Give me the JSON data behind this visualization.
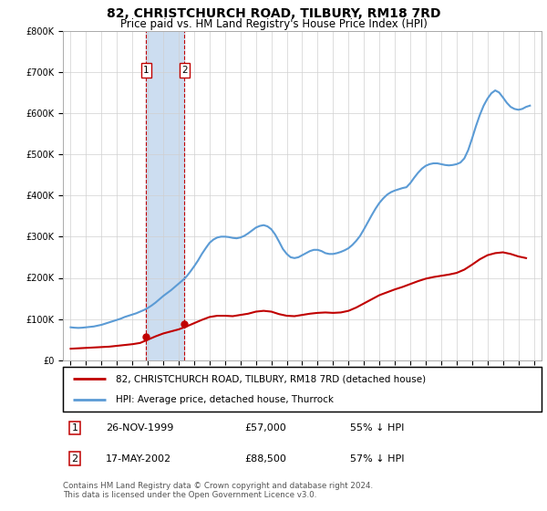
{
  "title": "82, CHRISTCHURCH ROAD, TILBURY, RM18 7RD",
  "subtitle": "Price paid vs. HM Land Registry's House Price Index (HPI)",
  "legend_line1": "82, CHRISTCHURCH ROAD, TILBURY, RM18 7RD (detached house)",
  "legend_line2": "HPI: Average price, detached house, Thurrock",
  "footer": "Contains HM Land Registry data © Crown copyright and database right 2024.\nThis data is licensed under the Open Government Licence v3.0.",
  "table_rows": [
    {
      "num": "1",
      "date": "26-NOV-1999",
      "price": "£57,000",
      "hpi": "55% ↓ HPI"
    },
    {
      "num": "2",
      "date": "17-MAY-2002",
      "price": "£88,500",
      "hpi": "57% ↓ HPI"
    }
  ],
  "sale_points": [
    {
      "year": 1999.9,
      "price": 57000,
      "label": "1"
    },
    {
      "year": 2002.38,
      "price": 88500,
      "label": "2"
    }
  ],
  "hpi_years": [
    1995.0,
    1995.25,
    1995.5,
    1995.75,
    1996.0,
    1996.25,
    1996.5,
    1996.75,
    1997.0,
    1997.25,
    1997.5,
    1997.75,
    1998.0,
    1998.25,
    1998.5,
    1998.75,
    1999.0,
    1999.25,
    1999.5,
    1999.75,
    2000.0,
    2000.25,
    2000.5,
    2000.75,
    2001.0,
    2001.25,
    2001.5,
    2001.75,
    2002.0,
    2002.25,
    2002.5,
    2002.75,
    2003.0,
    2003.25,
    2003.5,
    2003.75,
    2004.0,
    2004.25,
    2004.5,
    2004.75,
    2005.0,
    2005.25,
    2005.5,
    2005.75,
    2006.0,
    2006.25,
    2006.5,
    2006.75,
    2007.0,
    2007.25,
    2007.5,
    2007.75,
    2008.0,
    2008.25,
    2008.5,
    2008.75,
    2009.0,
    2009.25,
    2009.5,
    2009.75,
    2010.0,
    2010.25,
    2010.5,
    2010.75,
    2011.0,
    2011.25,
    2011.5,
    2011.75,
    2012.0,
    2012.25,
    2012.5,
    2012.75,
    2013.0,
    2013.25,
    2013.5,
    2013.75,
    2014.0,
    2014.25,
    2014.5,
    2014.75,
    2015.0,
    2015.25,
    2015.5,
    2015.75,
    2016.0,
    2016.25,
    2016.5,
    2016.75,
    2017.0,
    2017.25,
    2017.5,
    2017.75,
    2018.0,
    2018.25,
    2018.5,
    2018.75,
    2019.0,
    2019.25,
    2019.5,
    2019.75,
    2020.0,
    2020.25,
    2020.5,
    2020.75,
    2021.0,
    2021.25,
    2021.5,
    2021.75,
    2022.0,
    2022.25,
    2022.5,
    2022.75,
    2023.0,
    2023.25,
    2023.5,
    2023.75,
    2024.0,
    2024.25,
    2024.5,
    2024.75
  ],
  "hpi_values": [
    80000,
    79000,
    78500,
    79000,
    80000,
    81000,
    82000,
    84000,
    86000,
    89000,
    92000,
    95000,
    98000,
    101000,
    105000,
    108000,
    111000,
    114000,
    118000,
    122000,
    127000,
    133000,
    140000,
    148000,
    156000,
    163000,
    170000,
    178000,
    186000,
    194000,
    203000,
    215000,
    228000,
    242000,
    258000,
    272000,
    285000,
    293000,
    298000,
    300000,
    300000,
    299000,
    297000,
    296000,
    298000,
    302000,
    308000,
    315000,
    322000,
    326000,
    328000,
    325000,
    318000,
    305000,
    288000,
    270000,
    258000,
    250000,
    248000,
    250000,
    255000,
    260000,
    265000,
    268000,
    268000,
    265000,
    260000,
    258000,
    258000,
    260000,
    263000,
    267000,
    272000,
    280000,
    290000,
    302000,
    318000,
    335000,
    352000,
    368000,
    382000,
    393000,
    402000,
    408000,
    412000,
    415000,
    418000,
    420000,
    430000,
    443000,
    455000,
    465000,
    472000,
    476000,
    478000,
    478000,
    476000,
    474000,
    473000,
    474000,
    476000,
    480000,
    490000,
    510000,
    538000,
    568000,
    595000,
    618000,
    635000,
    648000,
    655000,
    650000,
    638000,
    625000,
    615000,
    610000,
    608000,
    610000,
    615000,
    618000
  ],
  "price_years": [
    1995.0,
    1995.5,
    1996.0,
    1996.5,
    1997.0,
    1997.5,
    1998.0,
    1998.5,
    1999.0,
    1999.5,
    2000.0,
    2000.5,
    2001.0,
    2001.5,
    2002.0,
    2002.5,
    2003.0,
    2003.5,
    2004.0,
    2004.5,
    2005.0,
    2005.5,
    2006.0,
    2006.5,
    2007.0,
    2007.5,
    2008.0,
    2008.5,
    2009.0,
    2009.5,
    2010.0,
    2010.5,
    2011.0,
    2011.5,
    2012.0,
    2012.5,
    2013.0,
    2013.5,
    2014.0,
    2014.5,
    2015.0,
    2015.5,
    2016.0,
    2016.5,
    2017.0,
    2017.5,
    2018.0,
    2018.5,
    2019.0,
    2019.5,
    2020.0,
    2020.5,
    2021.0,
    2021.5,
    2022.0,
    2022.5,
    2023.0,
    2023.5,
    2024.0,
    2024.5
  ],
  "price_values": [
    28000,
    29000,
    30000,
    31000,
    32000,
    33000,
    35000,
    37000,
    39000,
    42000,
    50000,
    58000,
    65000,
    70000,
    75000,
    82000,
    90000,
    98000,
    105000,
    108000,
    108000,
    107000,
    110000,
    113000,
    118000,
    120000,
    118000,
    112000,
    108000,
    107000,
    110000,
    113000,
    115000,
    116000,
    115000,
    116000,
    120000,
    128000,
    138000,
    148000,
    158000,
    165000,
    172000,
    178000,
    185000,
    192000,
    198000,
    202000,
    205000,
    208000,
    212000,
    220000,
    232000,
    245000,
    255000,
    260000,
    262000,
    258000,
    252000,
    248000
  ],
  "shaded_x1": 1999.9,
  "shaded_x2": 2002.38,
  "ylim": [
    0,
    800000
  ],
  "xlim_min": 1994.5,
  "xlim_max": 2025.5,
  "hpi_color": "#5b9bd5",
  "price_color": "#c00000",
  "shade_color": "#ccddf0",
  "grid_color": "#d0d0d0",
  "bg_color": "#ffffff",
  "title_fontsize": 10,
  "subtitle_fontsize": 8.5,
  "tick_fontsize": 7,
  "label_fontsize": 8
}
